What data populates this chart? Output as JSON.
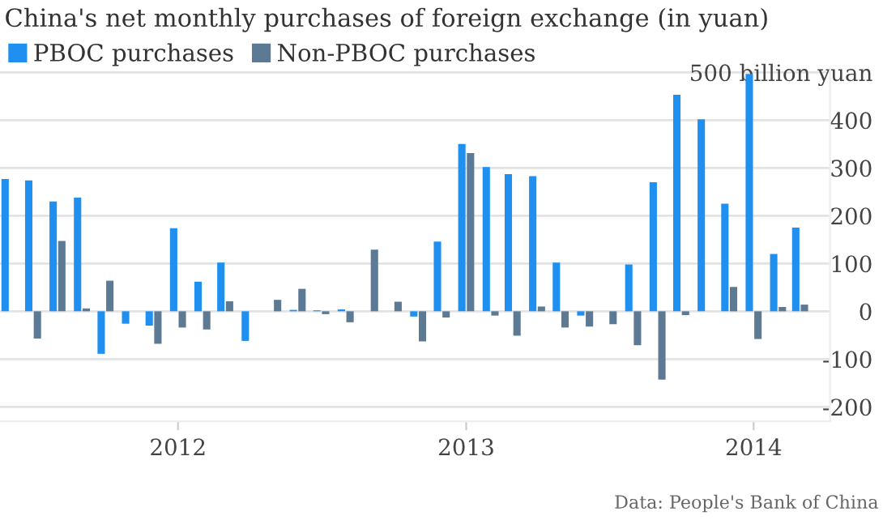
{
  "chart_data": {
    "type": "bar",
    "title": "China's net monthly purchases of foreign exchange (in yuan)",
    "x": [
      "2011-06",
      "2011-07",
      "2011-08",
      "2011-09",
      "2011-10",
      "2011-11",
      "2011-12",
      "2012-01",
      "2012-02",
      "2012-03",
      "2012-04",
      "2012-05",
      "2012-06",
      "2012-07",
      "2012-08",
      "2012-09",
      "2012-10",
      "2012-11",
      "2012-12",
      "2013-01",
      "2013-02",
      "2013-03",
      "2013-04",
      "2013-05",
      "2013-06",
      "2013-07",
      "2013-08",
      "2013-09",
      "2013-10",
      "2013-11",
      "2013-12",
      "2014-01",
      "2014-02",
      "2014-03"
    ],
    "series": [
      {
        "name": "PBOC purchases",
        "color": "#1f8ff0",
        "values": [
          277,
          274,
          230,
          238,
          -89,
          -26,
          -30,
          174,
          62,
          102,
          -62,
          0,
          3,
          2,
          4,
          null,
          0,
          -11,
          146,
          350,
          302,
          287,
          283,
          102,
          -9,
          null,
          98,
          270,
          453,
          402,
          225,
          497,
          120,
          175
        ]
      },
      {
        "name": "Non-PBOC purchases",
        "color": "#5d7a95",
        "values": [
          0,
          -57,
          147,
          6,
          64,
          0,
          -68,
          -34,
          -38,
          21,
          0,
          24,
          47,
          -6,
          -23,
          129,
          20,
          -63,
          -13,
          331,
          -9,
          -51,
          10,
          -34,
          -32,
          -27,
          -71,
          -143,
          -8,
          0,
          51,
          -58,
          9,
          14
        ]
      }
    ],
    "xlim": [
      "2011-05-20",
      "2014-04-08"
    ],
    "xticks": [
      {
        "value": "2012-01",
        "label": "2012"
      },
      {
        "value": "2013-01",
        "label": "2013"
      },
      {
        "value": "2014-01",
        "label": "2014"
      }
    ],
    "ylim": [
      -230,
      510
    ],
    "yticks": [
      -200,
      -100,
      0,
      100,
      200,
      300,
      400,
      {
        "value": 500,
        "label": "500 billion yuan"
      }
    ],
    "grid": "y",
    "legend": "top left",
    "annotations": [
      "Data: People's Bank of China"
    ]
  }
}
